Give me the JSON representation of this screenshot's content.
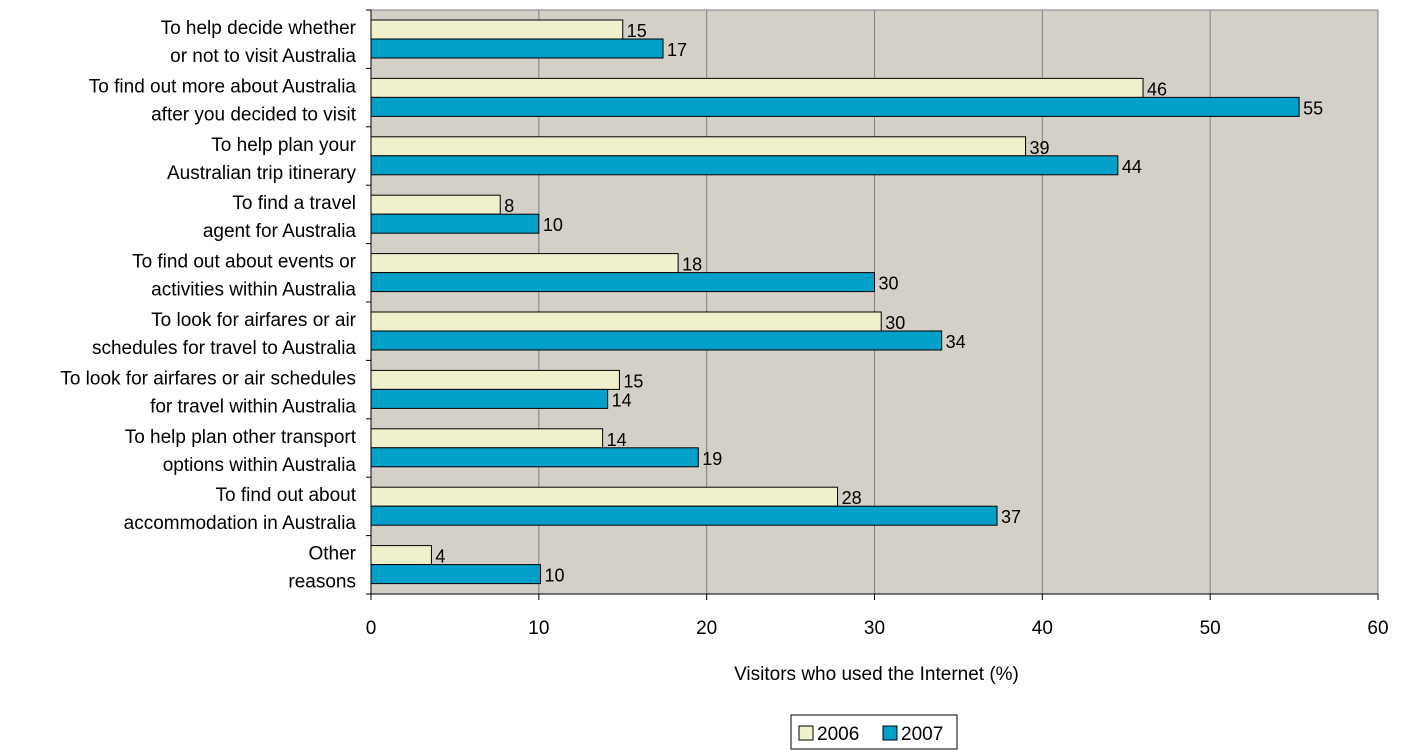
{
  "chart_data": {
    "type": "bar",
    "orientation": "horizontal",
    "categories": [
      [
        "To help decide whether",
        "or not to visit Australia"
      ],
      [
        "To find out more about Australia",
        "after you decided to visit"
      ],
      [
        "To help plan your",
        "Australian trip itinerary"
      ],
      [
        "To find a travel",
        "agent for Australia"
      ],
      [
        "To find out about events or",
        "activities within Australia"
      ],
      [
        "To look for airfares or air",
        "schedules for travel to Australia"
      ],
      [
        "To look for airfares or air schedules",
        "for travel within Australia"
      ],
      [
        "To help plan other transport",
        "options within Australia"
      ],
      [
        "To find out about",
        "accommodation in Australia"
      ],
      [
        "Other",
        "reasons"
      ]
    ],
    "series": [
      {
        "name": "2006",
        "color": "#f0f0cc",
        "values": [
          15,
          46,
          39,
          8,
          18,
          30,
          15,
          14,
          28,
          4
        ],
        "bar_values": [
          15,
          46,
          39,
          7.7,
          18.3,
          30.4,
          14.8,
          13.8,
          27.8,
          3.6
        ]
      },
      {
        "name": "2007",
        "color": "#00a0c8",
        "values": [
          17,
          55,
          44,
          10,
          30,
          34,
          14,
          19,
          37,
          10
        ],
        "bar_values": [
          17.4,
          55.3,
          44.5,
          10,
          30,
          34,
          14.1,
          19.5,
          37.3,
          10.1
        ]
      }
    ],
    "title": "",
    "xlabel": "Visitors who used the Internet (%)",
    "ylabel": "",
    "xlim": [
      0,
      60
    ],
    "xticks": [
      0,
      10,
      20,
      30,
      40,
      50,
      60
    ],
    "grid": true,
    "plot_background": "#d4d0c8",
    "legend_position": "bottom-center"
  }
}
